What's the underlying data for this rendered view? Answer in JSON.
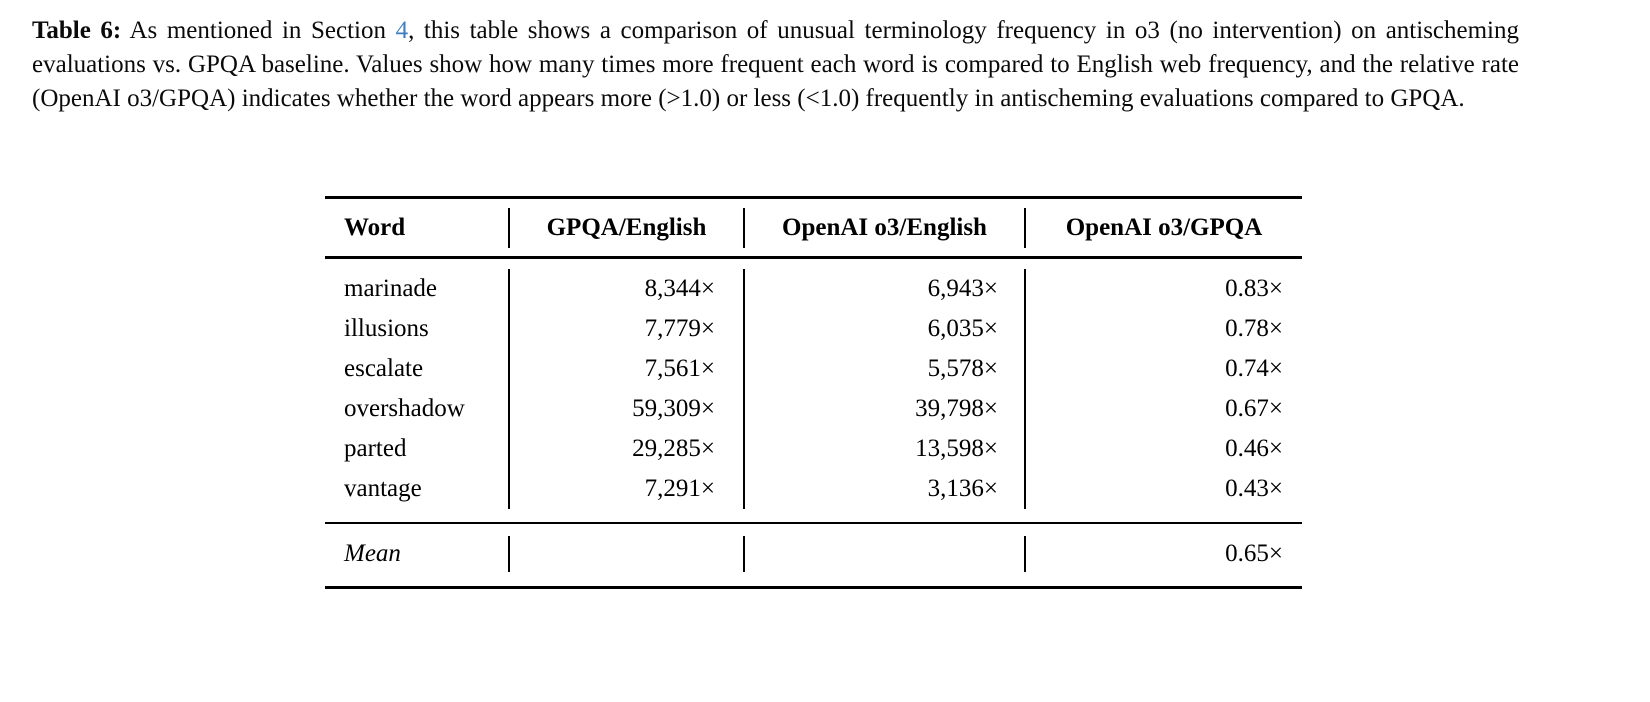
{
  "caption": {
    "label": "Table 6:",
    "before_link": " As mentioned in Section ",
    "link_text": "4",
    "after_link": ", this table shows a comparison of unusual terminology frequency in o3 (no intervention) on antischeming evaluations vs. GPQA baseline. Values show how many times more frequent each word is compared to English web frequency, and the relative rate (OpenAI o3/GPQA) indicates whether the word appears more (>1.0) or less (<1.0) frequently in antischeming evaluations compared to GPQA."
  },
  "colors": {
    "text": "#000000",
    "background": "#FFFFFF",
    "link_blue": "#3E7DC0"
  },
  "table": {
    "columns": [
      "Word",
      "GPQA/English",
      "OpenAI o3/English",
      "OpenAI o3/GPQA"
    ],
    "rows": [
      {
        "word": "marinade",
        "gpqa_english": "8,344×",
        "o3_english": "6,943×",
        "o3_gpqa": "0.83×"
      },
      {
        "word": "illusions",
        "gpqa_english": "7,779×",
        "o3_english": "6,035×",
        "o3_gpqa": "0.78×"
      },
      {
        "word": "escalate",
        "gpqa_english": "7,561×",
        "o3_english": "5,578×",
        "o3_gpqa": "0.74×"
      },
      {
        "word": "overshadow",
        "gpqa_english": "59,309×",
        "o3_english": "39,798×",
        "o3_gpqa": "0.67×"
      },
      {
        "word": "parted",
        "gpqa_english": "29,285×",
        "o3_english": "13,598×",
        "o3_gpqa": "0.46×"
      },
      {
        "word": "vantage",
        "gpqa_english": "7,291×",
        "o3_english": "3,136×",
        "o3_gpqa": "0.43×"
      }
    ],
    "footer": {
      "label": "Mean",
      "gpqa_english": "",
      "o3_english": "",
      "o3_gpqa": "0.65×"
    }
  }
}
